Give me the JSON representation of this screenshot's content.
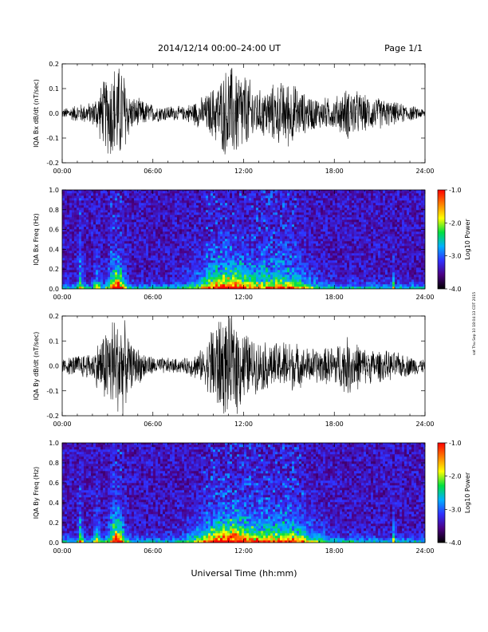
{
  "header": {
    "date_title": "2014/12/14  00:00–24:00 UT",
    "page_label": "Page 1/1"
  },
  "footer": {
    "xlabel": "Universal Time (hh:mm)",
    "side_note": "sat Thu Sep 10 18:04:13 CDT 2015"
  },
  "colors": {
    "trace": "#000000",
    "colormap": [
      "#000000",
      "#4b0082",
      "#3030ff",
      "#00b0ff",
      "#00e040",
      "#ffff00",
      "#ff8000",
      "#ff0000"
    ]
  },
  "chart_data": [
    {
      "type": "line",
      "name": "bx-waveform",
      "ylabel": "IQA Bx dB/dt (nT/sec)",
      "x_ticks": [
        "00:00",
        "06:00",
        "12:00",
        "18:00",
        "24:00"
      ],
      "xlim_hours": [
        0,
        24
      ],
      "ylim": [
        -0.2,
        0.2
      ],
      "y_ticks": [
        "-0.2",
        "-0.1",
        "0.0",
        "0.1",
        "0.2"
      ],
      "envelope": [
        {
          "t": 0.0,
          "amp": 0.02
        },
        {
          "t": 1.0,
          "amp": 0.04
        },
        {
          "t": 2.0,
          "amp": 0.05
        },
        {
          "t": 3.3,
          "amp": 0.22
        },
        {
          "t": 4.0,
          "amp": 0.22
        },
        {
          "t": 4.5,
          "amp": 0.08
        },
        {
          "t": 6.0,
          "amp": 0.04
        },
        {
          "t": 8.0,
          "amp": 0.03
        },
        {
          "t": 9.5,
          "amp": 0.08
        },
        {
          "t": 10.5,
          "amp": 0.16
        },
        {
          "t": 11.0,
          "amp": 0.22
        },
        {
          "t": 11.8,
          "amp": 0.2
        },
        {
          "t": 13.0,
          "amp": 0.1
        },
        {
          "t": 14.0,
          "amp": 0.13
        },
        {
          "t": 15.0,
          "amp": 0.15
        },
        {
          "t": 16.0,
          "amp": 0.09
        },
        {
          "t": 17.0,
          "amp": 0.07
        },
        {
          "t": 18.0,
          "amp": 0.07
        },
        {
          "t": 19.0,
          "amp": 0.12
        },
        {
          "t": 20.0,
          "amp": 0.08
        },
        {
          "t": 21.0,
          "amp": 0.07
        },
        {
          "t": 22.0,
          "amp": 0.05
        },
        {
          "t": 24.0,
          "amp": 0.02
        }
      ]
    },
    {
      "type": "heatmap",
      "name": "bx-spectrogram",
      "ylabel": "IQA Bx Freq (Hz)",
      "x_ticks": [
        "00:00",
        "06:00",
        "12:00",
        "18:00",
        "24:00"
      ],
      "xlim_hours": [
        0,
        24
      ],
      "ylim": [
        0,
        1.0
      ],
      "y_ticks": [
        "0.0",
        "0.2",
        "0.4",
        "0.6",
        "0.8",
        "1.0"
      ],
      "colorbar": {
        "label": "Log10 Power",
        "range": [
          -4.0,
          -1.0
        ],
        "ticks": [
          "-4.0",
          "-3.0",
          "-2.0",
          "-1.0"
        ]
      },
      "bursts": [
        {
          "t": 1.2,
          "width": 0.15,
          "strength": 0.5
        },
        {
          "t": 2.3,
          "width": 0.2,
          "strength": 0.4
        },
        {
          "t": 3.6,
          "width": 0.5,
          "strength": 0.9
        },
        {
          "t": 10.8,
          "width": 1.8,
          "strength": 0.8
        },
        {
          "t": 14.5,
          "width": 2.0,
          "strength": 0.55
        },
        {
          "t": 19.1,
          "width": 0.05,
          "strength": 0.6
        },
        {
          "t": 21.9,
          "width": 0.05,
          "strength": 0.5
        }
      ]
    },
    {
      "type": "line",
      "name": "by-waveform",
      "ylabel": "IQA By dB/dt (nT/sec)",
      "x_ticks": [
        "00:00",
        "06:00",
        "12:00",
        "18:00",
        "24:00"
      ],
      "xlim_hours": [
        0,
        24
      ],
      "ylim": [
        -0.2,
        0.2
      ],
      "y_ticks": [
        "-0.2",
        "-0.1",
        "0.0",
        "0.1",
        "0.2"
      ],
      "envelope": [
        {
          "t": 0.0,
          "amp": 0.03
        },
        {
          "t": 1.0,
          "amp": 0.05
        },
        {
          "t": 2.0,
          "amp": 0.06
        },
        {
          "t": 3.3,
          "amp": 0.22
        },
        {
          "t": 4.0,
          "amp": 0.22
        },
        {
          "t": 4.5,
          "amp": 0.1
        },
        {
          "t": 6.0,
          "amp": 0.04
        },
        {
          "t": 8.0,
          "amp": 0.03
        },
        {
          "t": 9.5,
          "amp": 0.08
        },
        {
          "t": 10.0,
          "amp": 0.22
        },
        {
          "t": 11.5,
          "amp": 0.22
        },
        {
          "t": 12.5,
          "amp": 0.12
        },
        {
          "t": 14.0,
          "amp": 0.1
        },
        {
          "t": 15.0,
          "amp": 0.12
        },
        {
          "t": 16.0,
          "amp": 0.08
        },
        {
          "t": 17.5,
          "amp": 0.08
        },
        {
          "t": 19.0,
          "amp": 0.13
        },
        {
          "t": 20.0,
          "amp": 0.08
        },
        {
          "t": 22.0,
          "amp": 0.06
        },
        {
          "t": 24.0,
          "amp": 0.03
        }
      ]
    },
    {
      "type": "heatmap",
      "name": "by-spectrogram",
      "ylabel": "IQA By Freq (Hz)",
      "x_ticks": [
        "00:00",
        "06:00",
        "12:00",
        "18:00",
        "24:00"
      ],
      "xlim_hours": [
        0,
        24
      ],
      "ylim": [
        0,
        1.0
      ],
      "y_ticks": [
        "0.0",
        "0.2",
        "0.4",
        "0.6",
        "0.8",
        "1.0"
      ],
      "colorbar": {
        "label": "Log10 Power",
        "range": [
          -4.0,
          -1.0
        ],
        "ticks": [
          "-4.0",
          "-3.0",
          "-2.0",
          "-1.0"
        ]
      },
      "bursts": [
        {
          "t": 1.2,
          "width": 0.15,
          "strength": 0.5
        },
        {
          "t": 2.3,
          "width": 0.2,
          "strength": 0.45
        },
        {
          "t": 3.6,
          "width": 0.5,
          "strength": 0.9
        },
        {
          "t": 11.0,
          "width": 2.0,
          "strength": 0.9
        },
        {
          "t": 14.8,
          "width": 2.0,
          "strength": 0.6
        },
        {
          "t": 19.1,
          "width": 0.05,
          "strength": 0.65
        },
        {
          "t": 21.9,
          "width": 0.05,
          "strength": 0.55
        }
      ]
    }
  ]
}
